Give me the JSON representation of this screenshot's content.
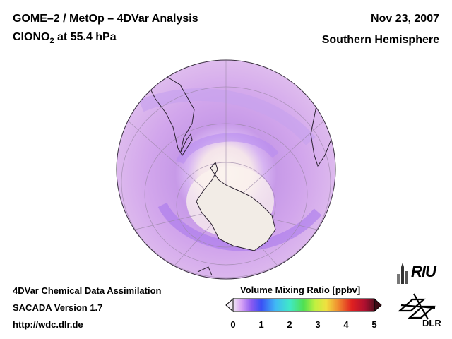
{
  "header": {
    "title": "GOME–2 / MetOp – 4DVar Analysis",
    "species_main": "ClONO",
    "species_sub": "2",
    "species_level": " at 55.4 hPa",
    "date": "Nov 23, 2007",
    "hemisphere": "Southern Hemisphere"
  },
  "footer": {
    "line1": "4DVar Chemical Data Assimilation",
    "line2": "SACADA Version 1.7",
    "line3": "http://wdc.dlr.de"
  },
  "colorbar": {
    "title": "Volume Mixing Ratio [ppbv]",
    "ticks": [
      "0",
      "1",
      "2",
      "3",
      "4",
      "5"
    ],
    "range": [
      0,
      5
    ]
  },
  "logos": {
    "riu": "RIU",
    "dlr": "DLR"
  },
  "colors": {
    "background": "#ffffff",
    "globe_edge": "#d9b4ec",
    "globe_mid": "#c99ae6",
    "globe_center_low": "#f6ebe6",
    "ozone_hole_ring": "#a86bf0"
  }
}
